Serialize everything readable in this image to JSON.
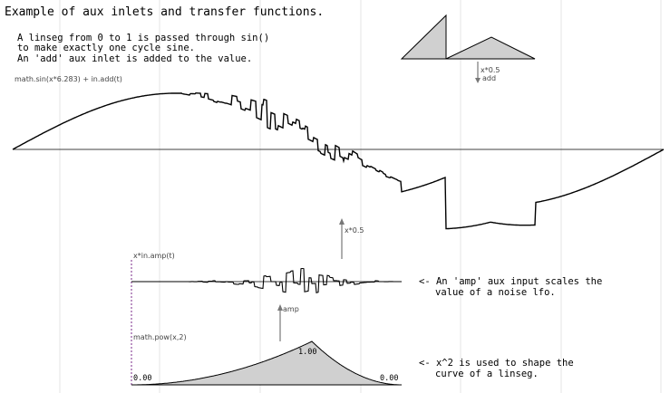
{
  "title": "Example of aux inlets and transfer functions.",
  "intro_lines": [
    "A linseg from 0 to 1 is passed through sin()",
    "to make exactly one cycle sine.",
    "An 'add' aux inlet is added to the value."
  ],
  "main_expr": "math.sin(x*6.283) + in.add(t)",
  "add_arrow_label": [
    "x*0.5",
    "add"
  ],
  "scale_arrow_label": "x*0.5",
  "amp_expr": "x*in.amp(t)",
  "amp_arrow_label": "amp",
  "amp_note": [
    "<- An 'amp' aux input scales the",
    "value of a noise lfo."
  ],
  "pow_expr": "math.pow(x,2)",
  "pow_labels": {
    "left": "0.00",
    "peak": "1.00",
    "right": "0.00"
  },
  "pow_note": [
    "<- x^2 is used to shape the",
    "curve of a linseg."
  ]
}
